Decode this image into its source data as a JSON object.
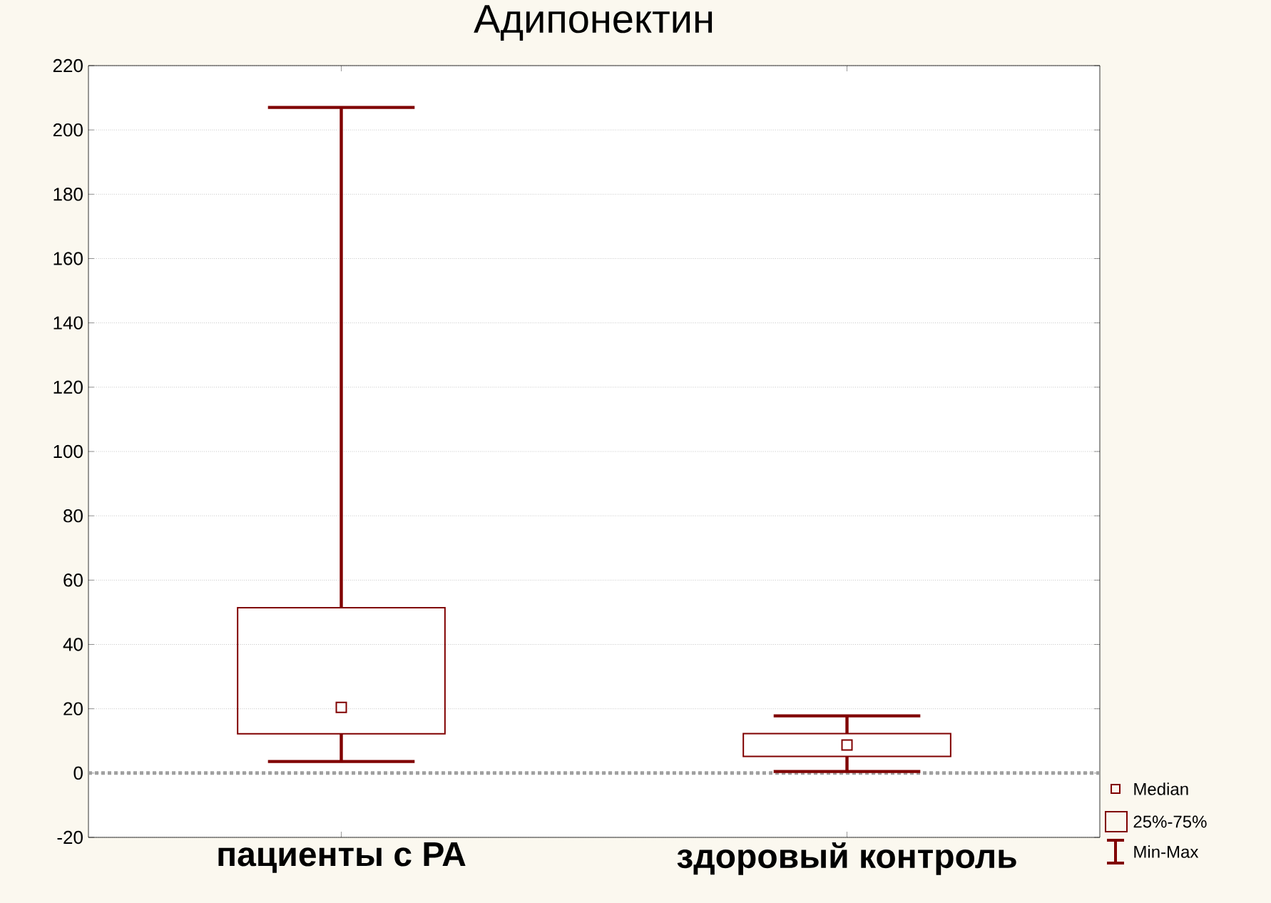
{
  "chart_data": {
    "type": "box",
    "title": "Адипонектин",
    "categories": [
      "пациенты с РА",
      "здоровый контроль"
    ],
    "color": "#800000",
    "boxes": [
      {
        "low": 3.6,
        "q1": 12.2,
        "median": 20.4,
        "q3": 51.4,
        "high": 207
      },
      {
        "low": 0.5,
        "q1": 5.2,
        "median": 8.7,
        "q3": 12.3,
        "high": 17.8
      }
    ],
    "ylim": [
      -20,
      220
    ],
    "yticks": [
      -20,
      0,
      20,
      40,
      60,
      80,
      100,
      120,
      140,
      160,
      180,
      200,
      220
    ],
    "grid": "y",
    "ref_lines": [
      {
        "axis": "y",
        "value": 0,
        "color": "#a0a0a0",
        "line_style": "dotted"
      }
    ],
    "annotations": [
      "Median",
      "25%-75%",
      "Min-Max"
    ]
  }
}
